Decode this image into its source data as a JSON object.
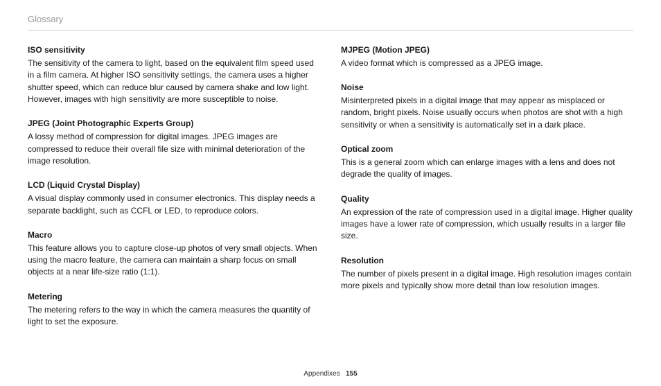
{
  "header": {
    "title": "Glossary"
  },
  "left_column": [
    {
      "term": "ISO sensitivity",
      "definition": "The sensitivity of the camera to light, based on the equivalent film speed used in a film camera. At higher ISO sensitivity settings, the camera uses a higher shutter speed, which can reduce blur caused by camera shake and low light. However, images with high sensitivity are more susceptible to noise."
    },
    {
      "term": "JPEG (Joint Photographic Experts Group)",
      "definition": "A lossy method of compression for digital images. JPEG images are compressed to reduce their overall file size with minimal deterioration of the image resolution."
    },
    {
      "term": "LCD (Liquid Crystal Display)",
      "definition": "A visual display commonly used in consumer electronics. This display needs a separate backlight, such as CCFL or LED, to reproduce colors."
    },
    {
      "term": "Macro",
      "definition": "This feature allows you to capture close-up photos of very small objects. When using the macro feature, the camera can maintain a sharp focus on small objects at a near life-size ratio (1:1)."
    },
    {
      "term": "Metering",
      "definition": "The metering refers to the way in which the camera measures the quantity of light to set the exposure."
    }
  ],
  "right_column": [
    {
      "term": "MJPEG (Motion JPEG)",
      "definition": "A video format which is compressed as a JPEG image."
    },
    {
      "term": "Noise",
      "definition": "Misinterpreted pixels in a digital image that may appear as misplaced or random, bright pixels. Noise usually occurs when photos are shot with a high sensitivity or when a sensitivity is automatically set in a dark place."
    },
    {
      "term": "Optical zoom",
      "definition": "This is a general zoom which can enlarge images with a lens and does not degrade the quality of images."
    },
    {
      "term": "Quality",
      "definition": "An expression of the rate of compression used in a digital image. Higher quality images have a lower rate of compression, which usually results in a larger file size."
    },
    {
      "term": "Resolution",
      "definition": "The number of pixels present in a digital image. High resolution images contain more pixels and typically show more detail than low resolution images."
    }
  ],
  "footer": {
    "section": "Appendixes",
    "page": "155"
  }
}
